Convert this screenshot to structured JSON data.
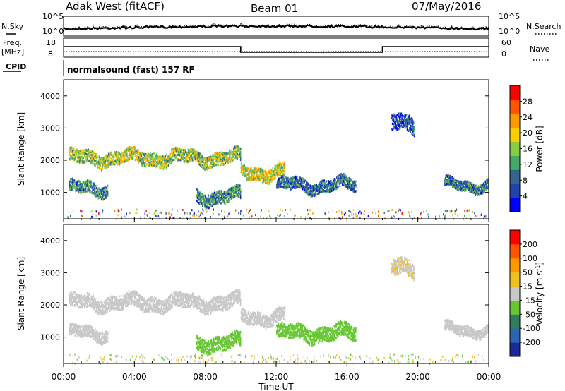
{
  "header": {
    "left": "Adak West (fitACF)",
    "center": "Beam 01",
    "right": "07/May/2016"
  },
  "side_labels": {
    "nsky": "N.Sky",
    "freq_line1": "Freq.",
    "freq_line2": "[MHz]",
    "cpid": "CPID",
    "nsearch": "N.Search",
    "nave": "Nave",
    "cpid_value": "normalsound (fast) 157 RF"
  },
  "noise_axis": {
    "left_ticks": [
      "10^5",
      "10^0"
    ],
    "right_ticks": [
      "10^5",
      "10^0"
    ]
  },
  "freq_axis": {
    "left_ticks": [
      "18",
      "8"
    ],
    "right_ticks": [
      "60",
      "0"
    ]
  },
  "x_axis": {
    "label": "Time UT",
    "ticks": [
      "00:00",
      "04:00",
      "08:00",
      "12:00",
      "16:00",
      "20:00",
      "00:00"
    ]
  },
  "colors": {
    "power_scale": [
      "#0000ff",
      "#2244aa",
      "#336688",
      "#44aa66",
      "#88cc44",
      "#ffcc00",
      "#ff9900",
      "#ff5500",
      "#ff0000"
    ],
    "velocity_scale": [
      "#1a2a9a",
      "#2a64b4",
      "#2e7d5e",
      "#66c733",
      "#c8c8c8",
      "#f0c020",
      "#ff9900",
      "#ff5500",
      "#ff0000"
    ]
  },
  "chart_data": [
    {
      "type": "heatmap",
      "title": "Power",
      "ylabel": "Slant Range [km]",
      "xlabel": "",
      "ylim": [
        180,
        4500
      ],
      "xlim_hours": [
        0,
        24
      ],
      "yticks": [
        1000,
        2000,
        3000,
        4000
      ],
      "colorbar": {
        "label": "Power [dB]",
        "ticks": [
          "28",
          "24",
          "20",
          "16",
          "12",
          "8",
          "4"
        ],
        "range": [
          0,
          32
        ]
      },
      "features": [
        {
          "t0": 0.3,
          "t1": 10.0,
          "r": 2100,
          "w": 200,
          "val": 16
        },
        {
          "t0": 0.3,
          "t1": 2.5,
          "r": 1150,
          "w": 180,
          "val": 10
        },
        {
          "t0": 7.5,
          "t1": 10.0,
          "r": 900,
          "w": 200,
          "val": 10
        },
        {
          "t0": 10.0,
          "t1": 12.5,
          "r": 1650,
          "w": 200,
          "val": 18
        },
        {
          "t0": 12.0,
          "t1": 16.5,
          "r": 1250,
          "w": 180,
          "val": 8
        },
        {
          "t0": 18.5,
          "t1": 19.8,
          "r": 3150,
          "w": 250,
          "val": 6
        },
        {
          "t0": 21.5,
          "t1": 24.0,
          "r": 1250,
          "w": 150,
          "val": 9
        }
      ]
    },
    {
      "type": "heatmap",
      "title": "Velocity",
      "ylabel": "Slant Range [km]",
      "xlabel": "Time UT",
      "ylim": [
        180,
        4500
      ],
      "xlim_hours": [
        0,
        24
      ],
      "yticks": [
        1000,
        2000,
        3000,
        4000
      ],
      "colorbar": {
        "label": "Velocity [m s^-1]",
        "ticks": [
          "200",
          "100",
          "50",
          "15",
          "-15",
          "-50",
          "-100",
          "-200"
        ],
        "range": [
          -250,
          250
        ]
      },
      "features": [
        {
          "t0": 0.3,
          "t1": 10.0,
          "r": 2100,
          "w": 220,
          "val": 0
        },
        {
          "t0": 0.3,
          "t1": 2.5,
          "r": 1150,
          "w": 180,
          "val": 0
        },
        {
          "t0": 7.5,
          "t1": 10.0,
          "r": 850,
          "w": 220,
          "val": -60
        },
        {
          "t0": 10.0,
          "t1": 12.5,
          "r": 1650,
          "w": 200,
          "val": 0
        },
        {
          "t0": 12.0,
          "t1": 16.5,
          "r": 1150,
          "w": 220,
          "val": -60
        },
        {
          "t0": 18.5,
          "t1": 19.8,
          "r": 3150,
          "w": 250,
          "val": 20
        },
        {
          "t0": 21.5,
          "t1": 24.0,
          "r": 1250,
          "w": 150,
          "val": 0
        }
      ]
    }
  ]
}
